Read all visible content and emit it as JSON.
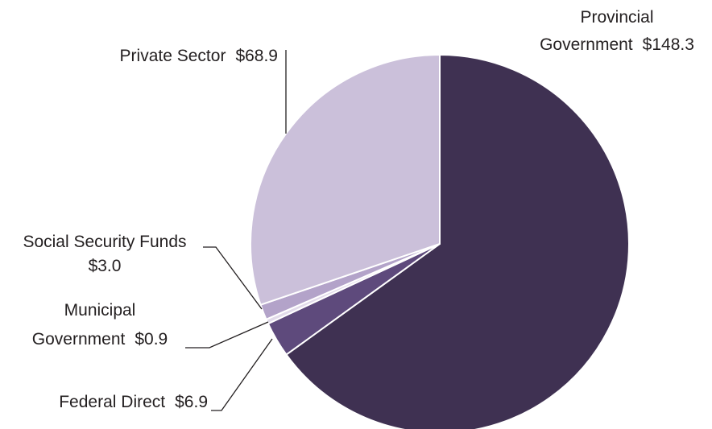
{
  "chart_data": {
    "type": "pie",
    "categories": [
      "Provincial Government",
      "Federal Direct",
      "Municipal Government",
      "Social Security Funds",
      "Private Sector"
    ],
    "values": [
      148.3,
      6.9,
      0.9,
      3.0,
      68.9
    ],
    "value_labels": [
      "$148.3",
      "$6.9",
      "$0.9",
      "$3.0",
      "$68.9"
    ],
    "colors": [
      "#3f3152",
      "#5e4a7c",
      "#e2dbea",
      "#b3a3c9",
      "#cbc0da"
    ]
  }
}
